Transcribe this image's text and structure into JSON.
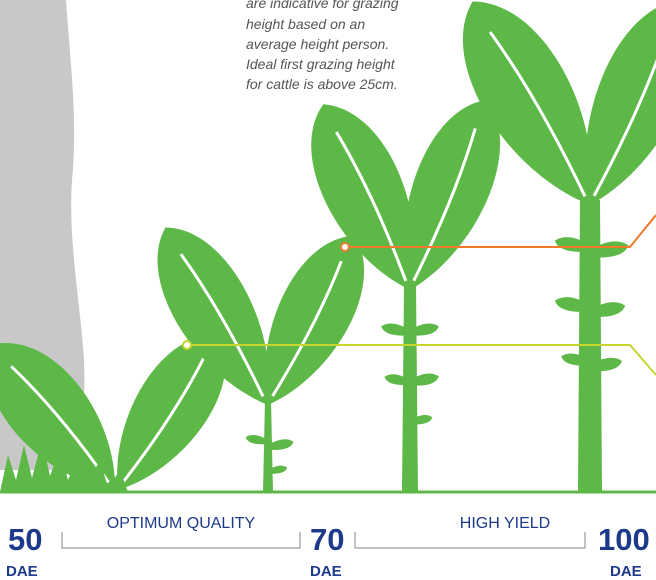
{
  "note": {
    "lines": [
      "are indicative for grazing",
      "height based on an",
      "average height person.",
      "Ideal first grazing height",
      "for cattle is above 25cm."
    ]
  },
  "timeline": {
    "markers": [
      {
        "days": "50",
        "unit": "DAE"
      },
      {
        "days": "70",
        "unit": "DAE"
      },
      {
        "days": "100",
        "unit": "DAE"
      }
    ],
    "stages": [
      "OPTIMUM QUALITY",
      "HIGH YIELD"
    ]
  }
}
